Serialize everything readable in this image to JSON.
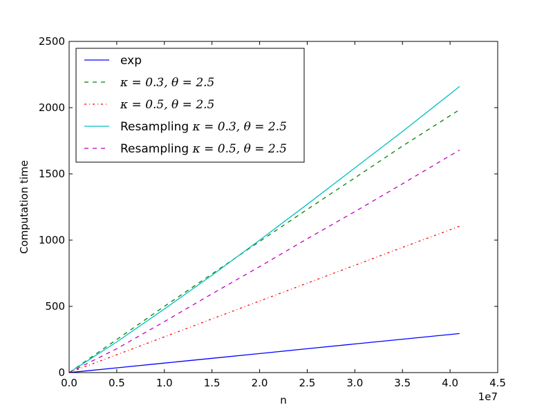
{
  "chart_data": {
    "type": "line",
    "xlabel": "n",
    "ylabel": "Computation time",
    "x_offset_label": "1e7",
    "xlim": [
      0,
      4.5
    ],
    "ylim": [
      0,
      2500
    ],
    "x_ticks": [
      "0.0",
      "0.5",
      "1.0",
      "1.5",
      "2.0",
      "2.5",
      "3.0",
      "3.5",
      "4.0",
      "4.5"
    ],
    "y_ticks": [
      "0",
      "500",
      "1000",
      "1500",
      "2000",
      "2500"
    ],
    "grid": false,
    "legend_position": "top-left",
    "x": [
      0,
      0.5,
      1.0,
      1.5,
      2.0,
      2.5,
      3.0,
      3.5,
      4.1
    ],
    "series": [
      {
        "legend_text": "exp",
        "legend_math": "",
        "color": "#0000ff",
        "dash": "solid",
        "values": [
          0,
          36,
          72,
          108,
          144,
          180,
          216,
          252,
          295
        ]
      },
      {
        "legend_text": "",
        "legend_math": "κ = 0.3, θ = 2.5",
        "color": "#008000",
        "dash": "dashed",
        "values": [
          0,
          250,
          500,
          745,
          990,
          1232,
          1470,
          1710,
          1985
        ]
      },
      {
        "legend_text": "",
        "legend_math": "κ = 0.5, θ = 2.5",
        "color": "#ff0000",
        "dash": "dashdot",
        "values": [
          0,
          135,
          270,
          405,
          540,
          675,
          810,
          945,
          1105
        ]
      },
      {
        "legend_text": "Resampling ",
        "legend_math": "κ = 0.3, θ = 2.5",
        "color": "#00bfbf",
        "dash": "solid",
        "values": [
          0,
          232,
          480,
          735,
          1000,
          1270,
          1545,
          1820,
          2160
        ]
      },
      {
        "legend_text": "Resampling ",
        "legend_math": "κ = 0.5, θ = 2.5",
        "color": "#bf00bf",
        "dash": "dashed",
        "values": [
          0,
          180,
          385,
          595,
          800,
          1010,
          1215,
          1425,
          1680
        ]
      }
    ]
  }
}
